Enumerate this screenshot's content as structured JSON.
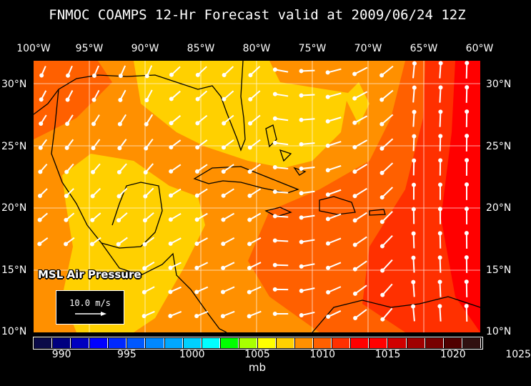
{
  "title": "FNMOC COAMPS 12-Hr Forecast valid at 2009/06/24 12Z",
  "map": {
    "lon_labels": [
      "100°W",
      "95°W",
      "90°W",
      "85°W",
      "80°W",
      "75°W",
      "70°W",
      "65°W",
      "60°W"
    ],
    "lat_labels": [
      "30°N",
      "25°N",
      "20°N",
      "15°N",
      "10°N"
    ],
    "field_label": "MSL Air Pressure",
    "reference_vector": "10.0 m/s"
  },
  "colorbar": {
    "unit": "mb",
    "tick_labels": [
      "990",
      "995",
      "1000",
      "1005",
      "1010",
      "1015",
      "1020",
      "1025"
    ],
    "colors": [
      "#0a0a48",
      "#000080",
      "#0000c0",
      "#0000ff",
      "#0028ff",
      "#0058ff",
      "#0088ff",
      "#00a8ff",
      "#00d0ff",
      "#00ffff",
      "#00ff00",
      "#a8ff00",
      "#ffff00",
      "#ffd000",
      "#ff9000",
      "#ff6000",
      "#ff3000",
      "#ff0000",
      "#ff0000",
      "#d00000",
      "#a00000",
      "#780000",
      "#500000",
      "#301010"
    ]
  },
  "colors": {
    "background": "#000000",
    "wind_vectors": "#ffffff",
    "coastline": "#000000"
  }
}
